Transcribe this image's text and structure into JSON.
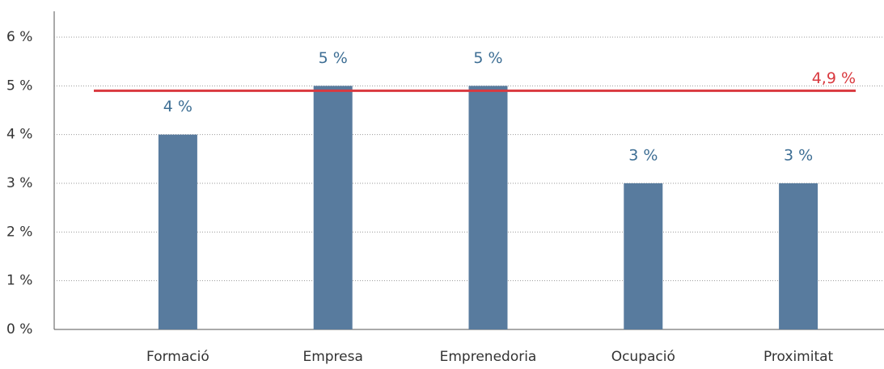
{
  "chart_data": {
    "type": "bar",
    "categories": [
      "Formació",
      "Empresa",
      "Emprenedoria",
      "Ocupació",
      "Proximitat"
    ],
    "values": [
      4,
      5,
      5,
      3,
      3
    ],
    "value_labels": [
      "4 %",
      "5 %",
      "5 %",
      "3 %",
      "3 %"
    ],
    "color": "#587b9e",
    "ylim": [
      0,
      6
    ],
    "yticks": [
      {
        "value": 0,
        "label": "0 %"
      },
      {
        "value": 1,
        "label": "1 %"
      },
      {
        "value": 2,
        "label": "2 %"
      },
      {
        "value": 3,
        "label": "3 %"
      },
      {
        "value": 4,
        "label": "4 %"
      },
      {
        "value": 5,
        "label": "5 %"
      },
      {
        "value": 6,
        "label": "6 %"
      }
    ],
    "grid": true,
    "reference_line": {
      "value": 4.9,
      "label": "4,9 %",
      "color": "#d9393f"
    }
  }
}
